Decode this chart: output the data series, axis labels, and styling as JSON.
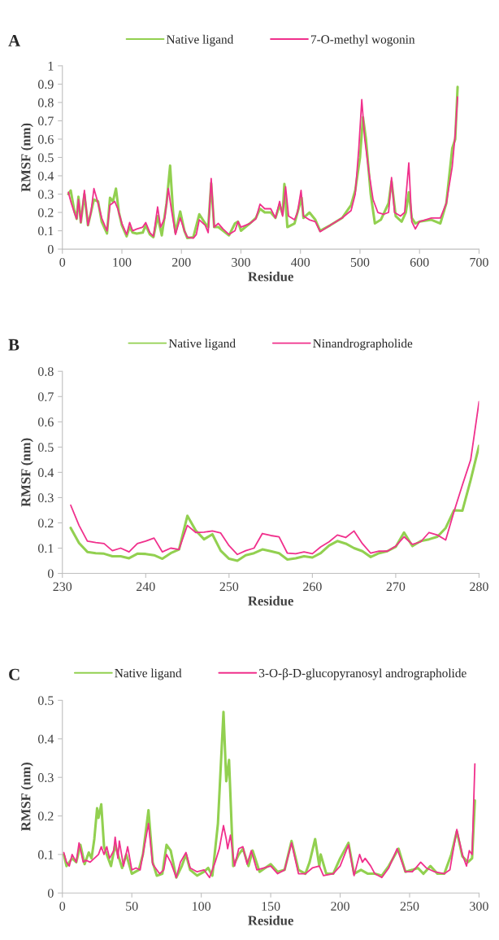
{
  "chart_data": [
    {
      "type": "line",
      "title": "A",
      "xlabel": "Residue",
      "ylabel": "RMSF (nm)",
      "xlim": [
        0,
        700
      ],
      "ylim": [
        0,
        1
      ],
      "xticks": [
        0,
        100,
        200,
        300,
        400,
        500,
        600,
        700
      ],
      "yticks": [
        0,
        0.1,
        0.2,
        0.3,
        0.4,
        0.5,
        0.6,
        0.7,
        0.8,
        0.9,
        1
      ],
      "legend": "top",
      "series": [
        {
          "name": "Native ligand",
          "color": "#92d050",
          "x": [
            10,
            14,
            20,
            24,
            27,
            31,
            37,
            43,
            48,
            53,
            60,
            66,
            75,
            80,
            85,
            90,
            95,
            100,
            108,
            113,
            118,
            125,
            135,
            140,
            147,
            153,
            160,
            167,
            175,
            181,
            186,
            190,
            198,
            205,
            210,
            220,
            230,
            240,
            245,
            250,
            255,
            262,
            270,
            280,
            290,
            295,
            300,
            315,
            325,
            332,
            340,
            350,
            358,
            365,
            370,
            373,
            378,
            390,
            395,
            402,
            405,
            415,
            425,
            433,
            450,
            470,
            485,
            492,
            500,
            505,
            510,
            518,
            525,
            535,
            548,
            553,
            560,
            570,
            577,
            582,
            587,
            593,
            600,
            620,
            635,
            645,
            655,
            660,
            664
          ],
          "values": [
            0.3,
            0.32,
            0.21,
            0.165,
            0.285,
            0.145,
            0.3,
            0.13,
            0.2,
            0.27,
            0.26,
            0.15,
            0.085,
            0.28,
            0.26,
            0.33,
            0.2,
            0.13,
            0.07,
            0.12,
            0.09,
            0.085,
            0.09,
            0.13,
            0.08,
            0.065,
            0.18,
            0.075,
            0.25,
            0.455,
            0.2,
            0.09,
            0.205,
            0.1,
            0.06,
            0.065,
            0.19,
            0.14,
            0.12,
            0.36,
            0.12,
            0.12,
            0.1,
            0.075,
            0.14,
            0.15,
            0.1,
            0.14,
            0.17,
            0.22,
            0.2,
            0.2,
            0.17,
            0.24,
            0.19,
            0.355,
            0.12,
            0.14,
            0.2,
            0.28,
            0.17,
            0.2,
            0.16,
            0.1,
            0.13,
            0.17,
            0.24,
            0.32,
            0.5,
            0.72,
            0.6,
            0.3,
            0.14,
            0.16,
            0.25,
            0.37,
            0.18,
            0.15,
            0.2,
            0.31,
            0.17,
            0.14,
            0.15,
            0.16,
            0.14,
            0.25,
            0.55,
            0.6,
            0.885
          ]
        },
        {
          "name": "7-O-methyl wogonin",
          "color": "#f0308c",
          "x": [
            10,
            15,
            20,
            24,
            27,
            31,
            37,
            43,
            48,
            53,
            60,
            66,
            75,
            80,
            88,
            93,
            100,
            108,
            113,
            118,
            125,
            135,
            140,
            147,
            153,
            160,
            165,
            172,
            178,
            183,
            190,
            198,
            205,
            210,
            220,
            225,
            230,
            240,
            245,
            250,
            255,
            262,
            270,
            280,
            290,
            295,
            300,
            315,
            325,
            332,
            340,
            350,
            358,
            365,
            370,
            375,
            380,
            390,
            395,
            401,
            405,
            415,
            425,
            433,
            450,
            470,
            485,
            492,
            498,
            503,
            508,
            515,
            522,
            530,
            540,
            548,
            553,
            558,
            568,
            575,
            582,
            587,
            593,
            600,
            620,
            635,
            645,
            655,
            660,
            664
          ],
          "values": [
            0.31,
            0.25,
            0.2,
            0.165,
            0.27,
            0.145,
            0.32,
            0.13,
            0.2,
            0.33,
            0.25,
            0.17,
            0.1,
            0.24,
            0.26,
            0.22,
            0.14,
            0.08,
            0.145,
            0.1,
            0.11,
            0.12,
            0.145,
            0.09,
            0.07,
            0.23,
            0.12,
            0.17,
            0.33,
            0.22,
            0.08,
            0.17,
            0.1,
            0.065,
            0.06,
            0.08,
            0.16,
            0.13,
            0.09,
            0.385,
            0.12,
            0.14,
            0.11,
            0.08,
            0.1,
            0.15,
            0.12,
            0.14,
            0.165,
            0.245,
            0.22,
            0.22,
            0.17,
            0.26,
            0.18,
            0.34,
            0.18,
            0.16,
            0.2,
            0.32,
            0.18,
            0.16,
            0.15,
            0.095,
            0.13,
            0.17,
            0.21,
            0.3,
            0.55,
            0.815,
            0.6,
            0.42,
            0.27,
            0.2,
            0.19,
            0.2,
            0.39,
            0.2,
            0.18,
            0.2,
            0.47,
            0.15,
            0.11,
            0.15,
            0.17,
            0.17,
            0.25,
            0.45,
            0.63,
            0.83
          ]
        }
      ]
    },
    {
      "type": "line",
      "title": "B",
      "xlabel": "Residue",
      "ylabel": "RMSF (nm)",
      "xlim": [
        230,
        280
      ],
      "ylim": [
        0,
        0.8
      ],
      "xticks": [
        230,
        240,
        250,
        260,
        270,
        280
      ],
      "yticks": [
        0,
        0.1,
        0.2,
        0.3,
        0.4,
        0.5,
        0.6,
        0.7,
        0.8
      ],
      "legend": "top",
      "series": [
        {
          "name": "Native ligand",
          "color": "#92d050",
          "x": [
            231,
            232,
            233,
            234,
            235,
            236,
            237,
            238,
            239,
            240,
            241,
            242,
            243,
            244,
            245,
            246,
            247,
            248,
            249,
            250,
            251,
            252,
            253,
            254,
            255,
            256,
            257,
            258,
            259,
            260,
            261,
            262,
            263,
            264,
            265,
            266,
            267,
            268,
            269,
            270,
            271,
            272,
            273,
            274,
            275,
            276,
            277,
            278,
            279,
            280
          ],
          "values": [
            0.18,
            0.12,
            0.085,
            0.08,
            0.078,
            0.068,
            0.068,
            0.06,
            0.078,
            0.077,
            0.072,
            0.058,
            0.08,
            0.095,
            0.228,
            0.17,
            0.135,
            0.155,
            0.09,
            0.058,
            0.05,
            0.072,
            0.08,
            0.095,
            0.088,
            0.08,
            0.055,
            0.06,
            0.068,
            0.063,
            0.08,
            0.11,
            0.128,
            0.118,
            0.1,
            0.088,
            0.065,
            0.08,
            0.088,
            0.105,
            0.162,
            0.108,
            0.128,
            0.135,
            0.145,
            0.18,
            0.25,
            0.248,
            0.37,
            0.505
          ]
        },
        {
          "name": "Ninandrographolide",
          "color": "#f0308c",
          "x": [
            231,
            232,
            233,
            234,
            235,
            236,
            237,
            238,
            239,
            240,
            241,
            242,
            243,
            244,
            245,
            246,
            247,
            248,
            249,
            250,
            251,
            252,
            253,
            254,
            255,
            256,
            257,
            258,
            259,
            260,
            261,
            262,
            263,
            264,
            265,
            266,
            267,
            268,
            269,
            270,
            271,
            272,
            273,
            274,
            275,
            276,
            277,
            278,
            279,
            280
          ],
          "values": [
            0.27,
            0.19,
            0.128,
            0.122,
            0.118,
            0.09,
            0.1,
            0.085,
            0.118,
            0.128,
            0.14,
            0.085,
            0.1,
            0.095,
            0.19,
            0.162,
            0.163,
            0.168,
            0.16,
            0.11,
            0.075,
            0.09,
            0.1,
            0.158,
            0.15,
            0.145,
            0.08,
            0.078,
            0.085,
            0.078,
            0.105,
            0.125,
            0.152,
            0.142,
            0.168,
            0.118,
            0.08,
            0.088,
            0.088,
            0.108,
            0.145,
            0.115,
            0.125,
            0.162,
            0.152,
            0.132,
            0.245,
            0.35,
            0.45,
            0.68
          ]
        }
      ]
    },
    {
      "type": "line",
      "title": "C",
      "xlabel": "Residue",
      "ylabel": "RMSF (nm)",
      "xlim": [
        0,
        300
      ],
      "ylim": [
        0,
        0.5
      ],
      "xticks": [
        0,
        50,
        100,
        150,
        200,
        250,
        300
      ],
      "yticks": [
        0,
        0.1,
        0.2,
        0.3,
        0.4,
        0.5
      ],
      "legend": "top",
      "series": [
        {
          "name": "Native ligand",
          "color": "#92d050",
          "x": [
            1,
            3,
            7,
            10,
            13,
            16,
            19,
            21,
            23,
            25,
            26,
            28,
            30,
            33,
            35,
            38,
            40,
            43,
            46,
            50,
            55,
            58,
            62,
            65,
            68,
            72,
            75,
            78,
            82,
            86,
            89,
            92,
            97,
            102,
            105,
            108,
            112,
            116,
            118,
            120,
            123,
            127,
            130,
            134,
            137,
            142,
            150,
            155,
            160,
            165,
            170,
            175,
            178,
            182,
            185,
            186,
            190,
            195,
            200,
            206,
            210,
            215,
            220,
            225,
            230,
            235,
            242,
            247,
            252,
            256,
            260,
            265,
            270,
            275,
            280,
            284,
            288,
            292,
            295,
            297
          ],
          "values": [
            0.1,
            0.07,
            0.09,
            0.08,
            0.125,
            0.075,
            0.105,
            0.09,
            0.14,
            0.22,
            0.195,
            0.23,
            0.12,
            0.09,
            0.07,
            0.125,
            0.1,
            0.065,
            0.1,
            0.05,
            0.06,
            0.1,
            0.215,
            0.08,
            0.045,
            0.05,
            0.125,
            0.11,
            0.04,
            0.07,
            0.1,
            0.06,
            0.045,
            0.055,
            0.065,
            0.045,
            0.18,
            0.47,
            0.29,
            0.345,
            0.07,
            0.1,
            0.115,
            0.07,
            0.11,
            0.055,
            0.075,
            0.055,
            0.06,
            0.135,
            0.06,
            0.05,
            0.08,
            0.14,
            0.07,
            0.1,
            0.05,
            0.05,
            0.09,
            0.13,
            0.05,
            0.06,
            0.05,
            0.05,
            0.045,
            0.07,
            0.115,
            0.055,
            0.06,
            0.065,
            0.05,
            0.07,
            0.05,
            0.05,
            0.1,
            0.16,
            0.095,
            0.08,
            0.09,
            0.24
          ]
        },
        {
          "name": "3-O-β-D-glucopyranosyl andrographolide",
          "color": "#f0308c",
          "x": [
            1,
            3,
            5,
            7,
            10,
            12,
            15,
            17,
            20,
            23,
            26,
            28,
            30,
            32,
            34,
            37,
            38,
            40,
            41,
            44,
            47,
            50,
            53,
            56,
            59,
            62,
            65,
            70,
            73,
            75,
            78,
            82,
            85,
            89,
            92,
            97,
            102,
            106,
            110,
            113,
            116,
            118,
            119,
            121,
            124,
            127,
            130,
            133,
            136,
            140,
            150,
            155,
            160,
            165,
            170,
            175,
            180,
            185,
            188,
            195,
            200,
            206,
            210,
            214,
            216,
            218,
            222,
            225,
            230,
            235,
            241,
            247,
            252,
            258,
            262,
            268,
            275,
            279,
            284,
            288,
            291,
            293,
            295,
            297
          ],
          "values": [
            0.105,
            0.08,
            0.07,
            0.1,
            0.08,
            0.13,
            0.08,
            0.085,
            0.08,
            0.09,
            0.1,
            0.12,
            0.1,
            0.12,
            0.09,
            0.11,
            0.145,
            0.09,
            0.135,
            0.07,
            0.12,
            0.06,
            0.065,
            0.06,
            0.12,
            0.18,
            0.075,
            0.05,
            0.06,
            0.1,
            0.08,
            0.04,
            0.08,
            0.105,
            0.065,
            0.055,
            0.06,
            0.04,
            0.08,
            0.115,
            0.175,
            0.14,
            0.115,
            0.15,
            0.07,
            0.115,
            0.12,
            0.075,
            0.11,
            0.06,
            0.07,
            0.05,
            0.06,
            0.13,
            0.05,
            0.05,
            0.065,
            0.07,
            0.045,
            0.05,
            0.07,
            0.125,
            0.045,
            0.1,
            0.08,
            0.09,
            0.07,
            0.05,
            0.04,
            0.065,
            0.115,
            0.055,
            0.055,
            0.08,
            0.065,
            0.055,
            0.05,
            0.06,
            0.165,
            0.1,
            0.07,
            0.11,
            0.1,
            0.335
          ]
        }
      ]
    }
  ]
}
